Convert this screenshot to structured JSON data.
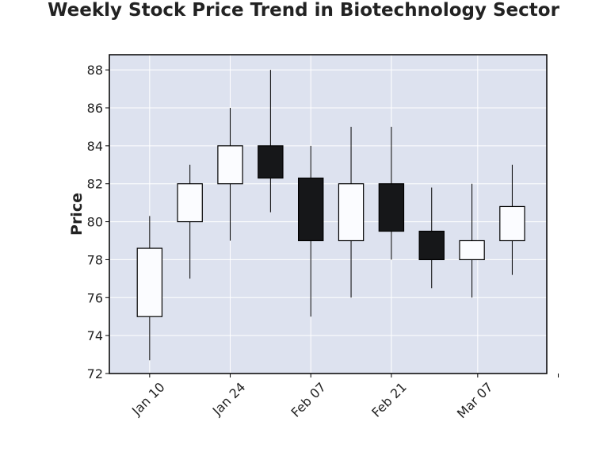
{
  "chart_data": {
    "type": "candlestick",
    "title": "Weekly Stock Price Trend in Biotechnology Sector",
    "xlabel": "",
    "ylabel": "Price",
    "ylim": [
      72,
      88.8
    ],
    "y_ticks": [
      72,
      74,
      76,
      78,
      80,
      82,
      84,
      86,
      88
    ],
    "x_range": [
      "2024-01-03",
      "2024-03-19"
    ],
    "x_ticks": [
      {
        "date": "2024-01-10",
        "label": "Jan 10"
      },
      {
        "date": "2024-01-24",
        "label": "Jan 24"
      },
      {
        "date": "2024-02-07",
        "label": "Feb 07"
      },
      {
        "date": "2024-02-21",
        "label": "Feb 21"
      },
      {
        "date": "2024-03-07",
        "label": "Mar 07"
      },
      {
        "date": "2024-03-21",
        "label": ""
      }
    ],
    "grid": true,
    "candles": [
      {
        "date": "2024-01-10",
        "open": 75.0,
        "high": 80.3,
        "low": 72.7,
        "close": 78.6
      },
      {
        "date": "2024-01-17",
        "open": 80.0,
        "high": 83.0,
        "low": 77.0,
        "close": 82.0
      },
      {
        "date": "2024-01-24",
        "open": 82.0,
        "high": 86.0,
        "low": 79.0,
        "close": 84.0
      },
      {
        "date": "2024-01-31",
        "open": 84.0,
        "high": 88.0,
        "low": 80.5,
        "close": 82.3
      },
      {
        "date": "2024-02-07",
        "open": 82.3,
        "high": 84.0,
        "low": 75.0,
        "close": 79.0
      },
      {
        "date": "2024-02-14",
        "open": 79.0,
        "high": 85.0,
        "low": 76.0,
        "close": 82.0
      },
      {
        "date": "2024-02-21",
        "open": 82.0,
        "high": 85.0,
        "low": 78.0,
        "close": 79.5
      },
      {
        "date": "2024-02-28",
        "open": 79.5,
        "high": 81.8,
        "low": 76.5,
        "close": 78.0
      },
      {
        "date": "2024-03-06",
        "open": 78.0,
        "high": 82.0,
        "low": 76.0,
        "close": 79.0
      },
      {
        "date": "2024-03-13",
        "open": 79.0,
        "high": 83.0,
        "low": 77.2,
        "close": 80.8
      }
    ],
    "colors": {
      "background": "#dde2ef",
      "grid": "#ffffff",
      "up_fill": "#fbfcff",
      "down_fill": "#161719",
      "edge": "#000000"
    }
  }
}
